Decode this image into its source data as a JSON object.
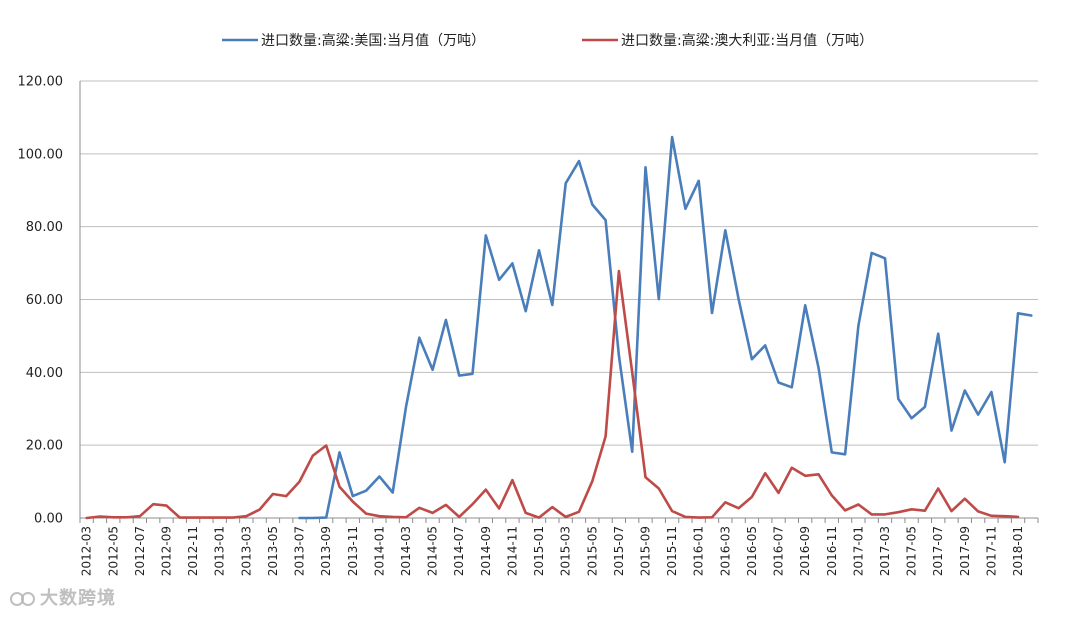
{
  "watermark": {
    "text": "大数跨境"
  },
  "chart_data": {
    "type": "line",
    "title": "",
    "xlabel": "",
    "ylabel": "",
    "ylim": [
      0,
      120
    ],
    "yticks": [
      "0.00",
      "20.00",
      "40.00",
      "60.00",
      "80.00",
      "100.00",
      "120.00"
    ],
    "grid": true,
    "legend_position": "top",
    "x": [
      "2012-03",
      "2012-04",
      "2012-05",
      "2012-06",
      "2012-07",
      "2012-08",
      "2012-09",
      "2012-10",
      "2012-11",
      "2012-12",
      "2013-01",
      "2013-02",
      "2013-03",
      "2013-04",
      "2013-05",
      "2013-06",
      "2013-07",
      "2013-08",
      "2013-09",
      "2013-10",
      "2013-11",
      "2013-12",
      "2014-01",
      "2014-02",
      "2014-03",
      "2014-04",
      "2014-05",
      "2014-06",
      "2014-07",
      "2014-08",
      "2014-09",
      "2014-10",
      "2014-11",
      "2014-12",
      "2015-01",
      "2015-02",
      "2015-03",
      "2015-04",
      "2015-05",
      "2015-06",
      "2015-07",
      "2015-08",
      "2015-09",
      "2015-10",
      "2015-11",
      "2015-12",
      "2016-01",
      "2016-02",
      "2016-03",
      "2016-04",
      "2016-05",
      "2016-06",
      "2016-07",
      "2016-08",
      "2016-09",
      "2016-10",
      "2016-11",
      "2016-12",
      "2017-01",
      "2017-02",
      "2017-03",
      "2017-04",
      "2017-05",
      "2017-06",
      "2017-07",
      "2017-08",
      "2017-09",
      "2017-10",
      "2017-11",
      "2017-12",
      "2018-01",
      "2018-02"
    ],
    "xticks_shown": [
      "2012-03",
      "2012-05",
      "2012-07",
      "2012-09",
      "2012-11",
      "2013-01",
      "2013-03",
      "2013-05",
      "2013-07",
      "2013-09",
      "2013-11",
      "2014-01",
      "2014-03",
      "2014-05",
      "2014-07",
      "2014-09",
      "2014-11",
      "2015-01",
      "2015-03",
      "2015-05",
      "2015-07",
      "2015-09",
      "2015-11",
      "2016-01",
      "2016-03",
      "2016-05",
      "2016-07",
      "2016-09",
      "2016-11",
      "2017-01",
      "2017-03",
      "2017-05",
      "2017-07",
      "2017-09",
      "2017-11",
      "2018-01"
    ],
    "series": [
      {
        "name": "进口数量:高粱:美国:当月值（万吨）",
        "color": "#4a7ebb",
        "values": [
          null,
          null,
          null,
          null,
          null,
          null,
          null,
          null,
          null,
          null,
          null,
          null,
          null,
          null,
          null,
          null,
          0.0,
          0.0,
          0.1,
          18.0,
          6.0,
          7.5,
          11.4,
          7.0,
          30.5,
          49.5,
          40.7,
          54.4,
          39.1,
          39.6,
          77.6,
          65.4,
          69.9,
          56.8,
          73.5,
          58.5,
          91.9,
          98.0,
          86.1,
          81.8,
          44.6,
          18.2,
          96.3,
          60.1,
          104.6,
          84.9,
          92.6,
          56.3,
          79.0,
          60.1,
          43.6,
          47.4,
          37.2,
          35.9,
          58.4,
          41.3,
          18.0,
          17.5,
          52.8,
          72.8,
          71.3,
          32.7,
          27.4,
          30.5,
          50.6,
          24.0,
          35.0,
          28.4,
          34.6,
          15.3,
          56.2,
          55.6
        ]
      },
      {
        "name": "进口数量:高粱:澳大利亚:当月值（万吨）",
        "color": "#be4b48",
        "values": [
          0.0,
          0.4,
          0.2,
          0.2,
          0.5,
          3.8,
          3.4,
          0.1,
          0.1,
          0.1,
          0.1,
          0.1,
          0.5,
          2.3,
          6.6,
          6.0,
          10.0,
          17.1,
          19.9,
          8.6,
          4.5,
          1.2,
          0.5,
          0.3,
          0.2,
          2.8,
          1.4,
          3.6,
          0.3,
          3.8,
          7.8,
          2.6,
          10.4,
          1.4,
          0.1,
          3.0,
          0.3,
          1.7,
          10.1,
          22.4,
          67.8,
          40.0,
          11.2,
          8.1,
          1.9,
          0.3,
          0.1,
          0.2,
          4.3,
          2.7,
          5.8,
          12.3,
          6.9,
          13.8,
          11.6,
          12.0,
          6.2,
          2.1,
          3.7,
          1.0,
          1.0,
          1.6,
          2.4,
          2.0,
          8.1,
          1.9,
          5.3,
          1.8,
          0.6,
          0.5,
          0.3,
          null
        ]
      }
    ]
  }
}
